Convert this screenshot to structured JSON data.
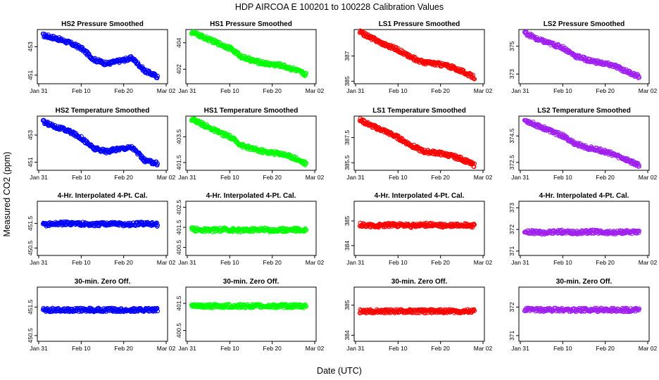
{
  "figure": {
    "title": "HDP   AIRCOA E   100201 to 100228   Calibration Values",
    "xlabel": "Date (UTC)",
    "ylabel": "Measured CO2 (ppm)"
  },
  "chart_data": {
    "type": "scatter",
    "x_ticks": [
      "Jan 31",
      "Feb 10",
      "Feb 20",
      "Mar 02"
    ],
    "x_tick_days": [
      0,
      10,
      20,
      30
    ],
    "xlim_days": [
      0,
      30
    ],
    "marker": "open-circle",
    "grid": false,
    "panels": [
      {
        "title": "HS2 Pressure Smoothed",
        "color": "#0000ff",
        "ylim": [
          450.4,
          454.2
        ],
        "yticks": [
          451,
          453
        ],
        "x": [
          1,
          4,
          7,
          10,
          13,
          16,
          19,
          22,
          25,
          28
        ],
        "y": [
          453.8,
          453.6,
          453.3,
          452.9,
          452.1,
          451.8,
          452.0,
          452.2,
          451.3,
          450.9
        ]
      },
      {
        "title": "HS1 Pressure Smoothed",
        "color": "#00ff00",
        "ylim": [
          400.9,
          405.0
        ],
        "yticks": [
          402,
          404
        ],
        "x": [
          1,
          4,
          7,
          10,
          13,
          16,
          19,
          22,
          25,
          28
        ],
        "y": [
          404.8,
          404.4,
          404.0,
          403.6,
          402.9,
          402.6,
          402.4,
          402.3,
          402.0,
          401.6
        ]
      },
      {
        "title": "LS1 Pressure Smoothed",
        "color": "#ff0000",
        "ylim": [
          384.8,
          389.1
        ],
        "yticks": [
          385,
          387
        ],
        "x": [
          1,
          4,
          7,
          10,
          13,
          16,
          19,
          22,
          25,
          28
        ],
        "y": [
          388.9,
          388.4,
          387.9,
          387.5,
          386.9,
          386.5,
          386.4,
          386.2,
          385.8,
          385.3
        ]
      },
      {
        "title": "LS2 Pressure Smoothed",
        "color": "#a020f0",
        "ylim": [
          372.3,
          376.2
        ],
        "yticks": [
          373,
          375
        ],
        "x": [
          1,
          4,
          7,
          10,
          13,
          16,
          19,
          22,
          25,
          28
        ],
        "y": [
          376.0,
          375.5,
          375.2,
          374.9,
          374.3,
          374.0,
          373.8,
          373.6,
          373.2,
          372.8
        ]
      },
      {
        "title": "HS2 Temperature Smoothed",
        "color": "#0000ff",
        "ylim": [
          450.4,
          454.4
        ],
        "yticks": [
          451,
          453
        ],
        "x": [
          1,
          4,
          7,
          10,
          13,
          16,
          19,
          22,
          25,
          28
        ],
        "y": [
          454.0,
          453.6,
          453.3,
          452.8,
          452.0,
          451.8,
          452.0,
          452.1,
          451.1,
          450.9
        ]
      },
      {
        "title": "HS1 Temperature Smoothed",
        "color": "#00ff00",
        "ylim": [
          400.9,
          405.1
        ],
        "yticks": [
          401.5,
          403.5
        ],
        "x": [
          1,
          4,
          7,
          10,
          13,
          16,
          19,
          22,
          25,
          28
        ],
        "y": [
          404.9,
          404.4,
          403.9,
          403.5,
          402.8,
          402.5,
          402.3,
          402.2,
          401.9,
          401.4
        ]
      },
      {
        "title": "LS1 Temperature Smoothed",
        "color": "#ff0000",
        "ylim": [
          384.9,
          389.2
        ],
        "yticks": [
          385.5,
          387.5
        ],
        "x": [
          1,
          4,
          7,
          10,
          13,
          16,
          19,
          22,
          25,
          28
        ],
        "y": [
          388.9,
          388.4,
          388.0,
          387.5,
          386.9,
          386.4,
          386.3,
          386.1,
          385.8,
          385.3
        ]
      },
      {
        "title": "LS2 Temperature Smoothed",
        "color": "#a020f0",
        "ylim": [
          371.9,
          376.0
        ],
        "yticks": [
          372.5,
          374.5
        ],
        "x": [
          1,
          4,
          7,
          10,
          13,
          16,
          19,
          22,
          25,
          28
        ],
        "y": [
          375.7,
          375.3,
          374.9,
          374.5,
          373.9,
          373.6,
          373.4,
          373.1,
          372.7,
          372.3
        ]
      },
      {
        "title": "4-Hr. Interpolated 4-Pt. Cal.",
        "color": "#0000ff",
        "ylim": [
          450.2,
          452.4
        ],
        "yticks": [
          450.5,
          451.5
        ],
        "x": [
          1,
          5,
          9,
          13,
          17,
          21,
          25,
          28
        ],
        "y": [
          451.45,
          451.5,
          451.5,
          451.45,
          451.5,
          451.45,
          451.5,
          451.45
        ]
      },
      {
        "title": "4-Hr. Interpolated 4-Pt. Cal.",
        "color": "#00ff00",
        "ylim": [
          400.1,
          402.8
        ],
        "yticks": [
          400.5,
          401.5,
          402.5
        ],
        "x": [
          1,
          5,
          9,
          13,
          17,
          21,
          25,
          28
        ],
        "y": [
          401.4,
          401.35,
          401.4,
          401.35,
          401.4,
          401.35,
          401.4,
          401.35
        ]
      },
      {
        "title": "4-Hr. Interpolated 4-Pt. Cal.",
        "color": "#ff0000",
        "ylim": [
          383.6,
          385.8
        ],
        "yticks": [
          384.0,
          385.0
        ],
        "x": [
          1,
          5,
          9,
          13,
          17,
          21,
          25,
          28
        ],
        "y": [
          384.85,
          384.8,
          384.85,
          384.8,
          384.85,
          384.8,
          384.85,
          384.8
        ]
      },
      {
        "title": "4-Hr. Interpolated 4-Pt. Cal.",
        "color": "#a020f0",
        "ylim": [
          370.8,
          373.3
        ],
        "yticks": [
          371.0,
          372.0,
          373.0
        ],
        "x": [
          1,
          5,
          9,
          13,
          17,
          21,
          25,
          28
        ],
        "y": [
          371.9,
          371.85,
          371.9,
          371.85,
          371.9,
          371.85,
          371.9,
          371.85
        ]
      },
      {
        "title": "30-min. Zero Off.",
        "color": "#0000ff",
        "ylim": [
          450.3,
          452.2
        ],
        "yticks": [
          450.5,
          451.5
        ],
        "x": [
          1,
          5,
          9,
          13,
          17,
          21,
          25,
          28
        ],
        "y": [
          451.4,
          451.4,
          451.4,
          451.4,
          451.4,
          451.4,
          451.4,
          451.4
        ]
      },
      {
        "title": "30-min. Zero Off.",
        "color": "#00ff00",
        "ylim": [
          400.1,
          402.1
        ],
        "yticks": [
          400.5,
          401.5
        ],
        "x": [
          1,
          5,
          9,
          13,
          17,
          21,
          25,
          28
        ],
        "y": [
          401.4,
          401.4,
          401.4,
          401.4,
          401.4,
          401.4,
          401.4,
          401.4
        ]
      },
      {
        "title": "30-min. Zero Off.",
        "color": "#ff0000",
        "ylim": [
          383.8,
          385.6
        ],
        "yticks": [
          384.0,
          385.0
        ],
        "x": [
          1,
          5,
          9,
          13,
          17,
          21,
          25,
          28
        ],
        "y": [
          384.8,
          384.8,
          384.8,
          384.8,
          384.8,
          384.8,
          384.8,
          384.8
        ]
      },
      {
        "title": "30-min. Zero Off.",
        "color": "#a020f0",
        "ylim": [
          370.8,
          372.7
        ],
        "yticks": [
          371.0,
          372.0
        ],
        "x": [
          1,
          5,
          9,
          13,
          17,
          21,
          25,
          28
        ],
        "y": [
          371.9,
          371.9,
          371.9,
          371.9,
          371.9,
          371.9,
          371.9,
          371.9
        ]
      }
    ]
  }
}
